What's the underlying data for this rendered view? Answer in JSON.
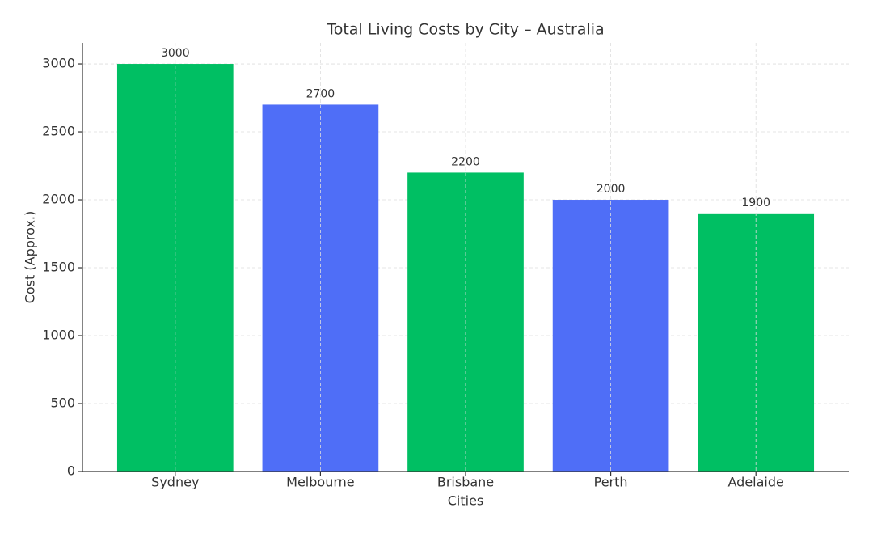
{
  "chart_data": {
    "type": "bar",
    "title": "Total Living Costs by City – Australia",
    "x_label": "Cities",
    "y_label": "Cost (Approx.)",
    "categories": [
      "Sydney",
      "Melbourne",
      "Brisbane",
      "Perth",
      "Adelaide"
    ],
    "values": [
      3000,
      2700,
      2200,
      2000,
      1900
    ],
    "colors": [
      "#00bf63",
      "#4f6ef7",
      "#00bf63",
      "#4f6ef7",
      "#00bf63"
    ],
    "ylim": [
      0,
      3155
    ],
    "yticks": [
      0,
      500,
      1000,
      1500,
      2000,
      2500,
      3000
    ],
    "grid": true
  }
}
